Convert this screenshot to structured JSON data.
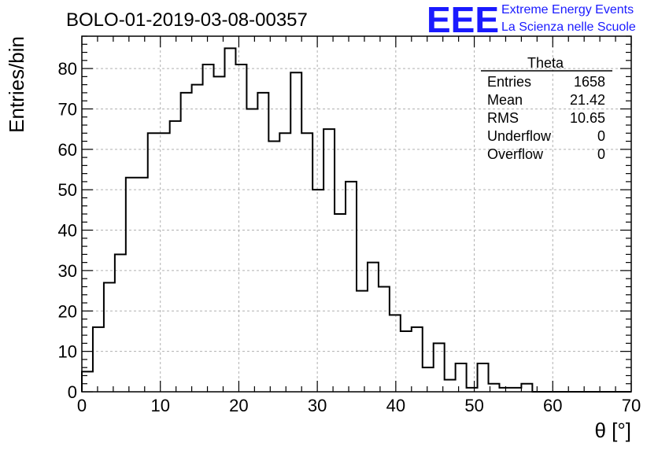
{
  "chart_data": {
    "type": "bar",
    "title": "BOLO-01-2019-03-08-00357",
    "xlabel": "θ [°]",
    "ylabel": "Entries/bin",
    "xlim": [
      0,
      70
    ],
    "ylim": [
      0,
      88
    ],
    "grid": true,
    "bin_width": 1.4,
    "x_ticks": [
      0,
      10,
      20,
      30,
      40,
      50,
      60,
      70
    ],
    "y_ticks": [
      0,
      10,
      20,
      30,
      40,
      50,
      60,
      70,
      80
    ],
    "values": [
      5,
      16,
      27,
      34,
      53,
      53,
      64,
      64,
      67,
      74,
      76,
      81,
      78,
      85,
      81,
      70,
      74,
      62,
      64,
      79,
      64,
      50,
      65,
      44,
      52,
      25,
      32,
      26,
      19,
      15,
      16,
      6,
      12,
      3,
      7,
      1,
      7,
      2,
      1,
      1,
      2,
      0,
      0,
      0,
      0,
      0,
      0,
      0,
      0,
      0
    ],
    "stats": {
      "name": "Theta",
      "rows": [
        {
          "label": "Entries",
          "value": "1658"
        },
        {
          "label": "Mean",
          "value": "21.42"
        },
        {
          "label": "RMS",
          "value": "10.65"
        },
        {
          "label": "Underflow",
          "value": "0"
        },
        {
          "label": "Overflow",
          "value": "0"
        }
      ]
    }
  },
  "logo": {
    "letters": "EEE",
    "line1": "Extreme Energy Events",
    "line2": "La Scienza nelle Scuole",
    "color": "#1a1aff"
  }
}
